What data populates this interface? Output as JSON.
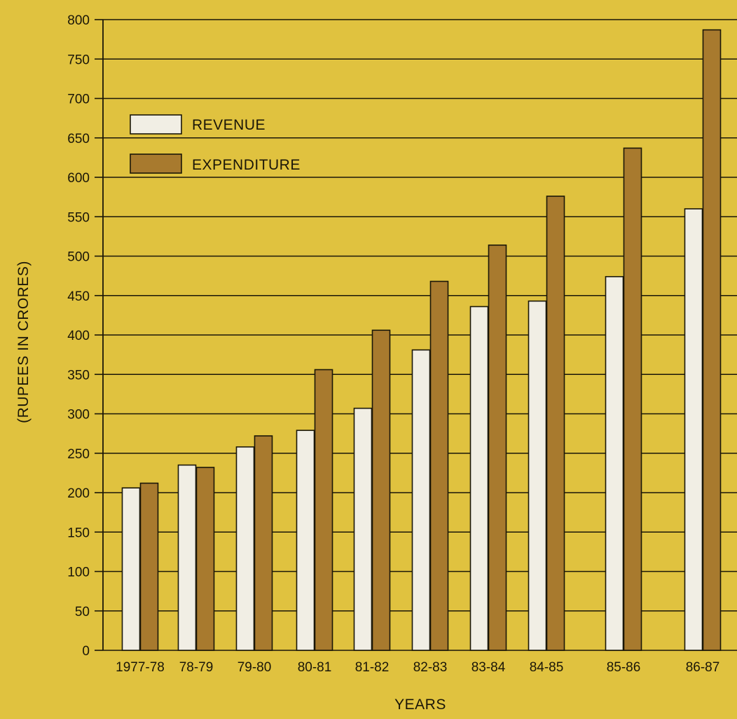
{
  "colors": {
    "background": "#e0c23f",
    "revenue": "#f1eee4",
    "expenditure": "#a87a2e",
    "ink": "#1a1608"
  },
  "chart_data": {
    "type": "bar",
    "title": "",
    "xlabel": "YEARS",
    "ylabel": "(RUPEES IN CRORES)",
    "ylim": [
      0,
      800
    ],
    "yticks": [
      0,
      50,
      100,
      150,
      200,
      250,
      300,
      350,
      400,
      450,
      500,
      550,
      600,
      650,
      700,
      750,
      800
    ],
    "grid": true,
    "legend_position": "top-left",
    "categories": [
      "1977-78",
      "78-79",
      "79-80",
      "80-81",
      "81-82",
      "82-83",
      "83-84",
      "84-85",
      "85-86",
      "86-87"
    ],
    "series": [
      {
        "name": "REVENUE",
        "color": "#f1eee4",
        "values": [
          206,
          235,
          258,
          279,
          307,
          381,
          436,
          443,
          474,
          560
        ]
      },
      {
        "name": "EXPENDITURE",
        "color": "#a87a2e",
        "values": [
          212,
          232,
          272,
          356,
          406,
          468,
          514,
          576,
          637,
          787
        ]
      }
    ]
  }
}
